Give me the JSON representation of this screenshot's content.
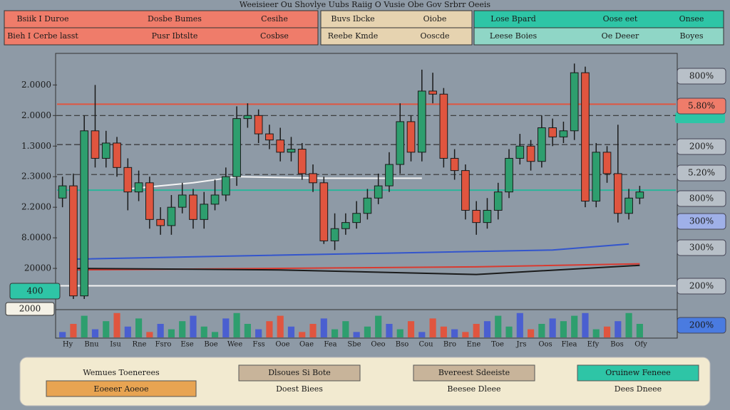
{
  "header": {
    "title": "Weeisieer Ou Shovlye Uubs Raiig O Vusie Obe Gov Srbrr Oeeis",
    "row1": [
      "Bsiik I Duroe",
      "Dosbe Bumes",
      "Cesihe",
      "Buvs Ibcke",
      "Oiobe",
      "Lose Bpard",
      "Oose eet",
      "Onsee"
    ],
    "row2": [
      "Bieh I Cerbe lasst",
      "Pusr Ibtslte",
      "Cosbse",
      "Reebe Kmde",
      "Ooscde",
      "Leese Boies",
      "Oe Deeer",
      "Boyes"
    ]
  },
  "chart_data": {
    "type": "candlestick",
    "ylim": [
      0,
      7.8
    ],
    "yticks": [
      {
        "value": 7,
        "label": "2.0000"
      },
      {
        "value": 6,
        "label": "2.0000"
      },
      {
        "value": 5,
        "label": "1.3000"
      },
      {
        "value": 4,
        "label": "2.3000"
      },
      {
        "value": 3,
        "label": "2.2000"
      },
      {
        "value": 2,
        "label": "8.0000"
      },
      {
        "value": 1,
        "label": "20000"
      }
    ],
    "up_color": "#2e9e6e",
    "down_color": "#e0553f",
    "open": [
      3.3,
      3.7,
      0.1,
      5.5,
      4.6,
      5.1,
      4.3,
      3.5,
      3.8,
      2.6,
      2.4,
      3.0,
      3.4,
      2.6,
      3.1,
      3.4,
      4.0,
      5.9,
      6.0,
      5.4,
      5.2,
      4.8,
      4.9,
      4.1,
      3.8,
      1.9,
      2.3,
      2.5,
      2.8,
      3.3,
      3.7,
      4.4,
      5.8,
      4.8,
      6.8,
      6.7,
      4.6,
      4.2,
      2.9,
      2.5,
      2.9,
      3.5,
      4.6,
      5.0,
      4.5,
      5.6,
      5.3,
      5.5,
      7.4,
      3.2,
      4.8,
      4.1,
      2.8,
      3.3
    ],
    "high": [
      4.0,
      4.1,
      6.0,
      7.0,
      5.5,
      5.3,
      4.6,
      4.2,
      4.0,
      3.0,
      3.4,
      3.8,
      3.6,
      3.5,
      3.9,
      4.3,
      6.3,
      6.4,
      6.2,
      5.7,
      5.6,
      5.3,
      5.1,
      4.4,
      4.0,
      2.8,
      2.8,
      3.2,
      3.6,
      4.1,
      4.8,
      6.4,
      6.0,
      7.5,
      7.4,
      6.9,
      4.9,
      4.4,
      3.2,
      3.3,
      3.8,
      4.9,
      5.4,
      5.2,
      6.0,
      5.9,
      5.8,
      7.7,
      7.6,
      5.1,
      5.0,
      5.7,
      3.6,
      3.7
    ],
    "low": [
      3.0,
      0.0,
      0.0,
      4.3,
      4.3,
      4.0,
      2.9,
      3.2,
      2.3,
      2.1,
      2.1,
      2.8,
      2.3,
      2.3,
      2.9,
      3.2,
      3.7,
      5.6,
      5.1,
      4.9,
      4.5,
      4.5,
      3.9,
      3.5,
      1.8,
      1.6,
      2.1,
      2.3,
      2.6,
      3.1,
      3.5,
      4.1,
      4.5,
      4.5,
      6.4,
      4.3,
      3.9,
      2.6,
      2.1,
      2.3,
      2.6,
      3.3,
      4.4,
      4.2,
      4.3,
      5.0,
      5.1,
      5.2,
      3.0,
      3.0,
      3.8,
      2.5,
      2.6,
      3.1
    ],
    "close": [
      3.7,
      0.1,
      5.5,
      4.6,
      5.1,
      4.3,
      3.5,
      3.8,
      2.6,
      2.4,
      3.0,
      3.4,
      2.6,
      3.1,
      3.4,
      4.0,
      5.9,
      6.0,
      5.4,
      5.2,
      4.8,
      4.9,
      4.1,
      3.8,
      1.9,
      2.3,
      2.5,
      2.8,
      3.3,
      3.7,
      4.4,
      5.8,
      4.8,
      6.8,
      6.7,
      4.6,
      4.2,
      2.9,
      2.5,
      2.9,
      3.5,
      4.6,
      5.0,
      4.5,
      5.6,
      5.3,
      5.5,
      7.4,
      3.2,
      4.8,
      4.1,
      2.8,
      3.3,
      3.5
    ],
    "volume": [
      2,
      5,
      8,
      3,
      6,
      9,
      4,
      7,
      2,
      5,
      3,
      6,
      8,
      4,
      2,
      7,
      9,
      5,
      3,
      6,
      8,
      4,
      2,
      5,
      7,
      3,
      6,
      2,
      4,
      8,
      5,
      3,
      6,
      2,
      7,
      4,
      3,
      2,
      5,
      6,
      8,
      4,
      9,
      3,
      5,
      7,
      6,
      8,
      9,
      3,
      4,
      6,
      9,
      5
    ],
    "vlim": [
      0,
      10
    ],
    "hlines": [
      {
        "value": 6.37,
        "color": "#e0553f",
        "style": "solid"
      },
      {
        "value": 6.0,
        "color": "#333333",
        "style": "dashed"
      },
      {
        "value": 5.05,
        "color": "#333333",
        "style": "dashed"
      },
      {
        "value": 4.07,
        "color": "#333333",
        "style": "dashed"
      },
      {
        "value": 3.56,
        "color": "#2bb59a",
        "style": "solid"
      },
      {
        "value": 0.43,
        "color": "#f2f2f2",
        "style": "solid"
      }
    ],
    "overlays": [
      {
        "color": "#f4f4f4",
        "x": [
          6,
          12,
          16,
          24,
          33
        ],
        "values": [
          3.6,
          3.8,
          4.0,
          3.95,
          3.95
        ]
      },
      {
        "color": "#3355cc",
        "x": [
          1,
          15,
          30,
          45,
          52
        ],
        "values": [
          1.3,
          1.4,
          1.5,
          1.6,
          1.8
        ]
      },
      {
        "color": "#d93a30",
        "x": [
          1,
          20,
          38,
          53
        ],
        "values": [
          0.95,
          1.0,
          1.05,
          1.15
        ]
      },
      {
        "color": "#1a1a1a",
        "x": [
          1,
          20,
          38,
          53
        ],
        "values": [
          1.0,
          0.95,
          0.8,
          1.1
        ]
      }
    ],
    "x_labels": [
      "Hy",
      "Bnu",
      "Isu",
      "Rne",
      "Fsro",
      "Ese",
      "Boe",
      "Wee",
      "Fss",
      "Ooe",
      "Oae",
      "Fea",
      "Sbe",
      "Oeo",
      "Bso",
      "Cou",
      "Bro",
      "Ene",
      "Toe",
      "Jrs",
      "Oos",
      "Flea",
      "Efy",
      "Bos",
      "Ofy"
    ],
    "left_labels": [
      "400",
      "2000"
    ],
    "right_labels": [
      "800%",
      "5.80%",
      "200%",
      "5.20%",
      "800%",
      "300%",
      "300%",
      "200%",
      "200%"
    ]
  },
  "footer": {
    "buttons": [
      "Wemues Toenerees",
      "Dlsoues Si Bote",
      "Bvereest Sdeeiste",
      "Oruinew Feneee"
    ],
    "row2": [
      "Eoeeer Aoeoe",
      "Doest Biees",
      "Beesee Dleee",
      "Dees Dneee"
    ]
  }
}
